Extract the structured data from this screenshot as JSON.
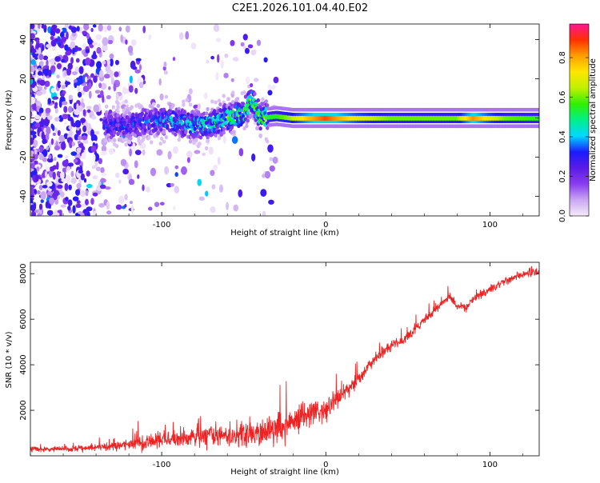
{
  "title": "C2E1.2026.101.04.40.E02",
  "chart_data": [
    {
      "type": "heatmap",
      "title": "C2E1.2026.101.04.40.E02",
      "xlabel": "Height of straight line (km)",
      "ylabel": "Frequency (Hz)",
      "xlim": [
        -180,
        130
      ],
      "ylim": [
        -50,
        48
      ],
      "xticks": [
        -100,
        0,
        100
      ],
      "yticks": [
        -40,
        -20,
        0,
        20,
        40
      ],
      "colorbar": {
        "label": "Normalized spectral amplitude",
        "range": [
          0,
          0.97
        ],
        "ticks": [
          0.0,
          0.2,
          0.4,
          0.6,
          0.8
        ],
        "colors": [
          "#f6ecfb",
          "#c9a6f2",
          "#8a3cf0",
          "#5a1be6",
          "#1b1bff",
          "#00d8ff",
          "#00f08a",
          "#30f000",
          "#c0f000",
          "#ffe600",
          "#ffa000",
          "#ff3000",
          "#ff1493"
        ]
      },
      "ridge": {
        "x": [
          -125,
          -110,
          -95,
          -80,
          -70,
          -60,
          -50,
          -45,
          -40,
          -30,
          -20,
          -10,
          0,
          10,
          20,
          40,
          60,
          80,
          90,
          100,
          110,
          130
        ],
        "freq": [
          -4,
          -2,
          -1,
          -4,
          -3,
          0,
          2,
          10,
          0,
          1,
          0,
          0,
          0,
          0,
          0,
          0,
          0,
          0,
          0,
          0,
          0,
          0
        ],
        "peak": [
          0.3,
          0.35,
          0.4,
          0.45,
          0.45,
          0.5,
          0.55,
          0.55,
          0.55,
          0.6,
          0.7,
          0.85,
          0.95,
          0.85,
          0.75,
          0.65,
          0.65,
          0.65,
          0.9,
          0.75,
          0.65,
          0.6
        ]
      }
    },
    {
      "type": "line",
      "title": "",
      "xlabel": "Height of straight line (km)",
      "ylabel": "SNR (10 * v/v)",
      "xlim": [
        -180,
        130
      ],
      "ylim": [
        0,
        8500
      ],
      "xticks": [
        -100,
        0,
        100
      ],
      "yticks": [
        2000,
        4000,
        6000,
        8000
      ],
      "series": [
        {
          "name": "SNR",
          "color": "#ee2222",
          "x": [
            -180,
            -160,
            -140,
            -120,
            -100,
            -80,
            -60,
            -40,
            -30,
            -20,
            -10,
            0,
            10,
            20,
            30,
            40,
            50,
            60,
            70,
            75,
            80,
            85,
            90,
            100,
            110,
            120,
            130
          ],
          "y": [
            300,
            300,
            350,
            500,
            700,
            800,
            900,
            1000,
            1200,
            1500,
            1800,
            2100,
            2700,
            3400,
            4300,
            4800,
            5200,
            6000,
            6600,
            7000,
            6600,
            6500,
            6900,
            7300,
            7700,
            8000,
            8100
          ],
          "noise": [
            150,
            150,
            200,
            300,
            450,
            550,
            650,
            700,
            800,
            800,
            700,
            600,
            450,
            400,
            350,
            320,
            300,
            280,
            260,
            250,
            240,
            240,
            240,
            240,
            240,
            240,
            240
          ]
        }
      ]
    }
  ]
}
